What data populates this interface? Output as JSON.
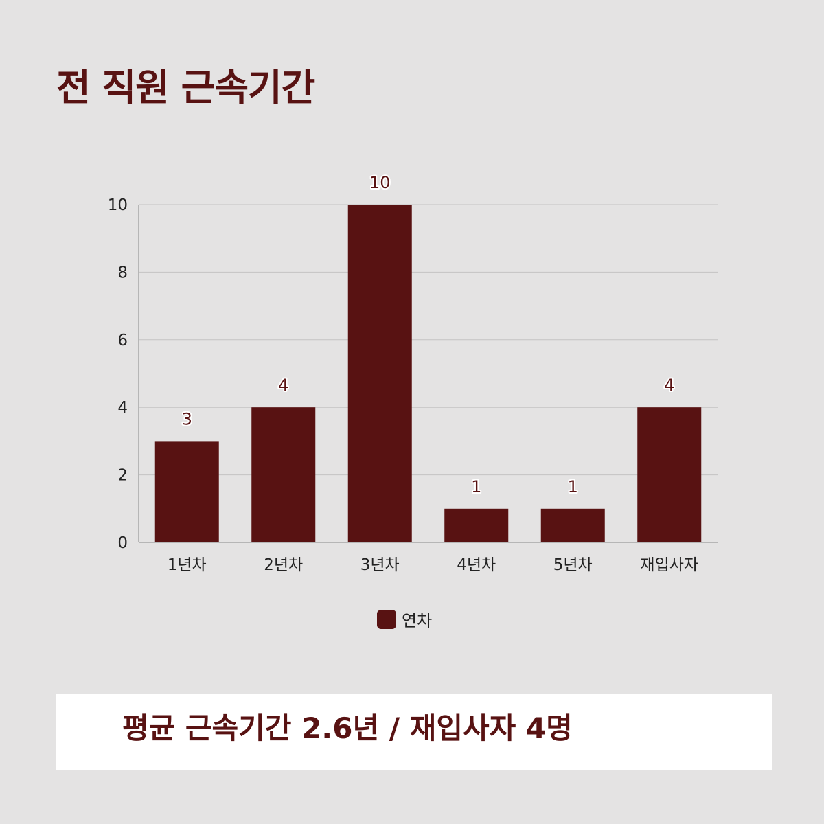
{
  "title": "전 직원 근속기간",
  "colors": {
    "accent": "#581212",
    "background": "#e4e3e3",
    "grid": "#c4c3c3",
    "axis": "#888888"
  },
  "chart_data": {
    "type": "bar",
    "categories": [
      "1년차",
      "2년차",
      "3년차",
      "4년차",
      "5년차",
      "재입사자"
    ],
    "series": [
      {
        "name": "연차",
        "values": [
          3,
          4,
          10,
          1,
          1,
          4
        ],
        "color": "#581212"
      }
    ],
    "ylim": [
      0,
      10
    ],
    "yticks": [
      0,
      2,
      4,
      6,
      8,
      10
    ],
    "grid": true,
    "legend": "bottom",
    "data_labels": true
  },
  "legend": {
    "label": "연차"
  },
  "summary": {
    "text": "평균 근속기간 2.6년 / 재입사자 4명"
  }
}
